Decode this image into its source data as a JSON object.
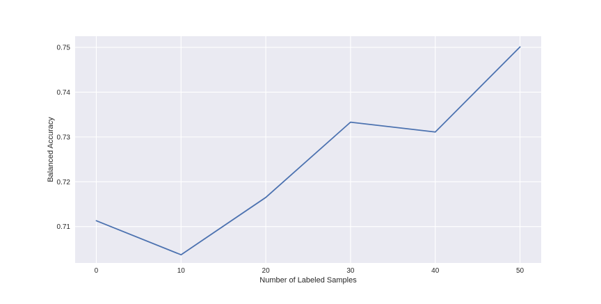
{
  "chart_data": {
    "type": "line",
    "title": "",
    "xlabel": "Number of Labeled Samples",
    "ylabel": "Balanced Accuracy",
    "x": [
      0,
      10,
      20,
      30,
      40,
      50
    ],
    "series": [
      {
        "values": [
          0.7113,
          0.7037,
          0.7165,
          0.7333,
          0.7311,
          0.7501
        ],
        "color": "#4c72b0"
      }
    ],
    "xticks": [
      0,
      10,
      20,
      30,
      40,
      50
    ],
    "xtick_labels": [
      "0",
      "10",
      "20",
      "30",
      "40",
      "50"
    ],
    "yticks": [
      0.71,
      0.72,
      0.73,
      0.74,
      0.75
    ],
    "ytick_labels": [
      "0.71",
      "0.72",
      "0.73",
      "0.74",
      "0.75"
    ],
    "xlim": [
      -2.5,
      52.5
    ],
    "ylim": [
      0.70187,
      0.7525
    ],
    "grid": true,
    "legend": "none",
    "style": {
      "plot_background": "#eaeaf2",
      "grid_color": "#ffffff",
      "text_color": "#262626"
    }
  }
}
